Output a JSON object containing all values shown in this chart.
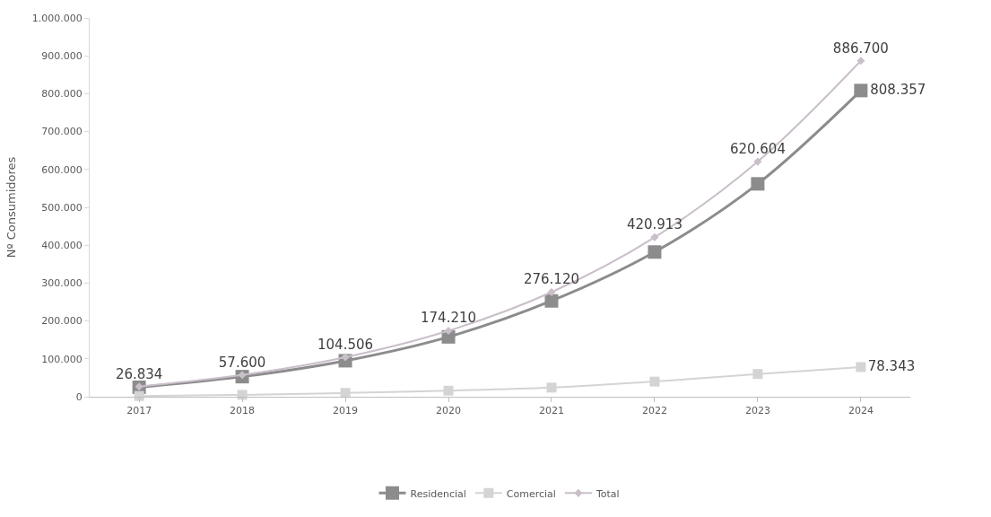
{
  "chart_data": {
    "type": "line",
    "ylabel": "Nº Consumidores",
    "categories": [
      "2017",
      "2018",
      "2019",
      "2020",
      "2021",
      "2022",
      "2023",
      "2024"
    ],
    "series": [
      {
        "name": "Residencial",
        "color": "#8c8c8c",
        "marker": "square",
        "values": [
          25000,
          53000,
          95000,
          158000,
          253000,
          382000,
          562000,
          808357
        ],
        "value_labels": [
          null,
          null,
          null,
          null,
          null,
          null,
          null,
          "808.357"
        ]
      },
      {
        "name": "Comercial",
        "color": "#d4d4d4",
        "marker": "square",
        "values": [
          2000,
          5000,
          10000,
          16000,
          24000,
          40000,
          60000,
          78343
        ],
        "value_labels": [
          null,
          null,
          null,
          null,
          null,
          null,
          null,
          "78.343"
        ]
      },
      {
        "name": "Total",
        "color": "#c9bfc9",
        "marker": "diamond",
        "values": [
          26834,
          57600,
          104506,
          174210,
          276120,
          420913,
          620604,
          886700
        ],
        "value_labels": [
          "26.834",
          "57.600",
          "104.506",
          "174.210",
          "276.120",
          "420.913",
          "620.604",
          "886.700"
        ]
      }
    ],
    "ylim": [
      0,
      1000000
    ],
    "yticks": [
      {
        "value": 0,
        "label": "0"
      },
      {
        "value": 100000,
        "label": "100.000"
      },
      {
        "value": 200000,
        "label": "200.000"
      },
      {
        "value": 300000,
        "label": "300.000"
      },
      {
        "value": 400000,
        "label": "400.000"
      },
      {
        "value": 500000,
        "label": "500.000"
      },
      {
        "value": 600000,
        "label": "600.000"
      },
      {
        "value": 700000,
        "label": "700.000"
      },
      {
        "value": 800000,
        "label": "800.000"
      },
      {
        "value": 900000,
        "label": "900.000"
      },
      {
        "value": 1000000,
        "label": "1.000.000"
      }
    ],
    "grid": false,
    "legend": "bottom",
    "line_style": "solid"
  }
}
